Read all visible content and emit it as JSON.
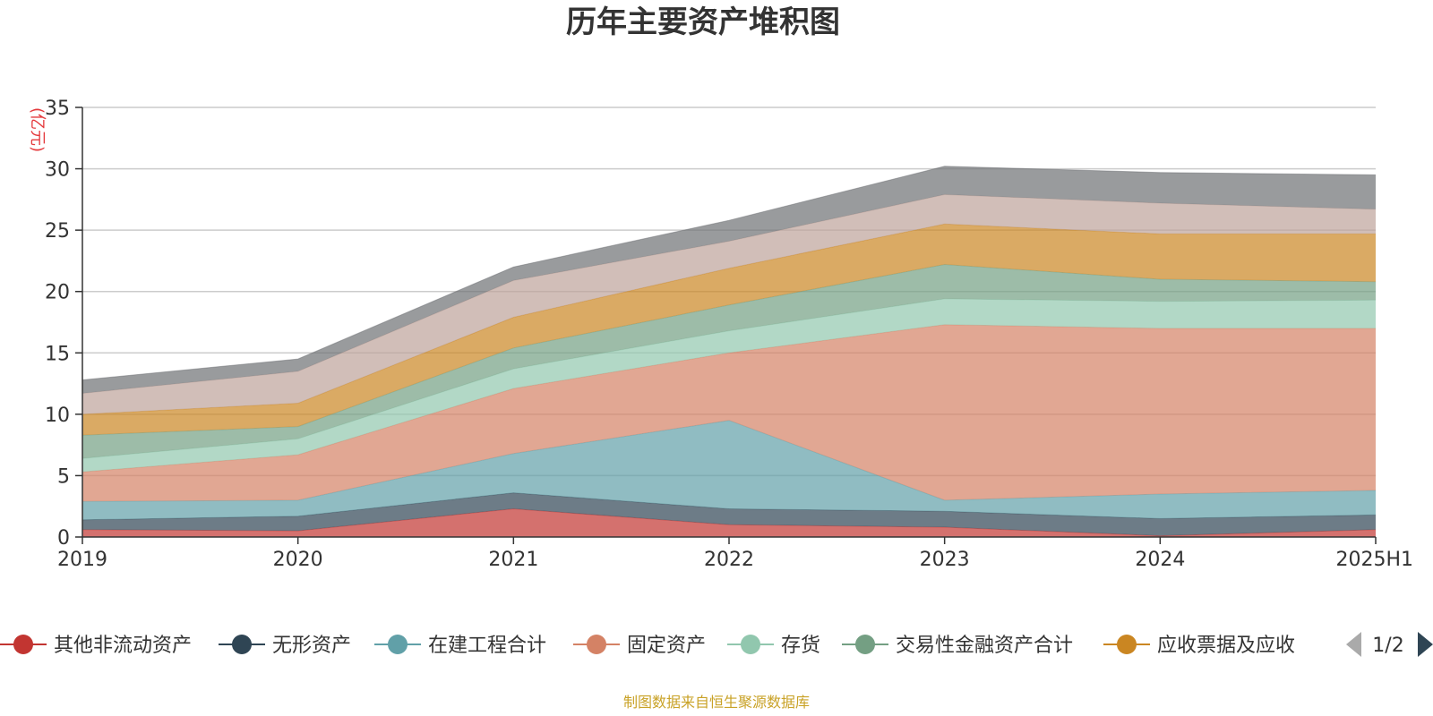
{
  "chart_data": {
    "type": "area",
    "stacked": true,
    "title": "历年主要资产堆积图",
    "unit_label": "(亿元)",
    "source": "制图数据来自恒生聚源数据库",
    "categories": [
      "2019",
      "2020",
      "2021",
      "2022",
      "2023",
      "2024",
      "2025H1"
    ],
    "ylim": [
      0,
      35
    ],
    "yticks": [
      0,
      5,
      10,
      15,
      20,
      25,
      30,
      35
    ],
    "grid": true,
    "legend_position": "bottom",
    "series": [
      {
        "name": "其他非流动资产",
        "color": "#c23531",
        "values": [
          0.6,
          0.5,
          2.3,
          1.0,
          0.8,
          0.1,
          0.6
        ]
      },
      {
        "name": "无形资产",
        "color": "#2f4554",
        "values": [
          0.8,
          1.2,
          1.3,
          1.3,
          1.3,
          1.4,
          1.2
        ]
      },
      {
        "name": "在建工程合计",
        "color": "#61a0a8",
        "values": [
          1.5,
          1.3,
          3.2,
          7.2,
          0.9,
          2.0,
          2.0
        ]
      },
      {
        "name": "固定资产",
        "color": "#d48265",
        "values": [
          2.4,
          3.7,
          5.3,
          5.5,
          14.3,
          13.5,
          13.2
        ]
      },
      {
        "name": "存货",
        "color": "#91c7ae",
        "values": [
          1.1,
          1.3,
          1.6,
          1.8,
          2.1,
          2.2,
          2.3
        ]
      },
      {
        "name": "交易性金融资产合计",
        "color": "#749f83",
        "values": [
          1.9,
          1.0,
          1.7,
          2.1,
          2.8,
          1.8,
          1.5
        ]
      },
      {
        "name": "应收票据及应收",
        "color": "#ca8622",
        "values": [
          1.7,
          1.9,
          2.5,
          3.0,
          3.3,
          3.7,
          3.9
        ]
      },
      {
        "name": "",
        "color": "#bda29a",
        "values": [
          1.7,
          2.6,
          3.0,
          2.2,
          2.4,
          2.5,
          2.0
        ]
      },
      {
        "name": "",
        "color": "#6e7074",
        "values": [
          1.1,
          1.0,
          1.1,
          1.7,
          2.3,
          2.5,
          2.8
        ]
      }
    ],
    "legend_page": "1/2"
  }
}
